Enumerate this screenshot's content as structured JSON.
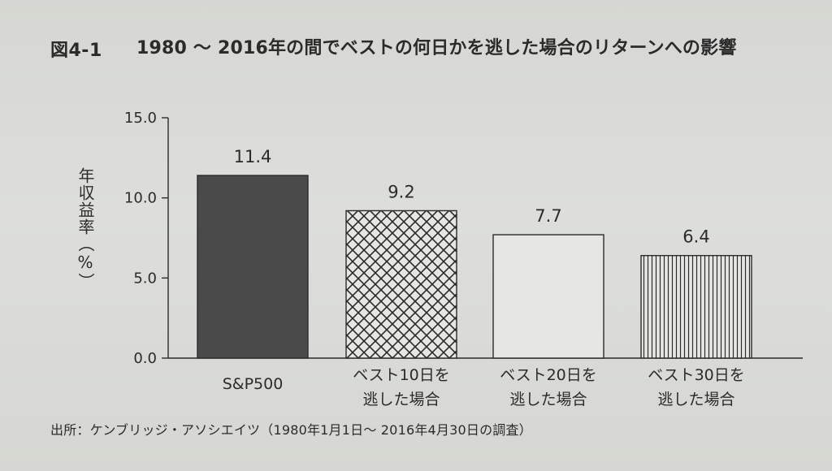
{
  "figure": {
    "label": "図4-1",
    "title": "1980 ～ 2016年の間でベストの何日かを逃した場合のリターンへの影響",
    "source": "出所：ケンブリッジ・アソシエイツ（1980年1月1日～ 2016年4月30日の調査）"
  },
  "chart_data": {
    "type": "bar",
    "title": "1980 ～ 2016年の間でベストの何日かを逃した場合のリターンへの影響",
    "xlabel": "",
    "ylabel": "年収益率（%）",
    "ylim": [
      0,
      15
    ],
    "yticks": [
      "0.0",
      "5.0",
      "10.0",
      "15.0"
    ],
    "categories": [
      "S&P500",
      "ベスト10日を逃した場合",
      "ベスト20日を逃した場合",
      "ベスト30日を逃した場合"
    ],
    "category_lines": [
      [
        "S&P500"
      ],
      [
        "ベスト10日を",
        "逃した場合"
      ],
      [
        "ベスト20日を",
        "逃した場合"
      ],
      [
        "ベスト30日を",
        "逃した場合"
      ]
    ],
    "values": [
      11.4,
      9.2,
      7.7,
      6.4
    ],
    "value_labels": [
      "11.4",
      "9.2",
      "7.7",
      "6.4"
    ],
    "patterns": [
      "solid-dark",
      "crosshatch",
      "blank",
      "vertical-lines"
    ],
    "grid": false,
    "legend": "none"
  },
  "colors": {
    "ink": "#2b2b2b",
    "dark_fill": "#4a4a4a",
    "paper": "#d9dad5",
    "bar_fill": "#e6e7e2"
  }
}
